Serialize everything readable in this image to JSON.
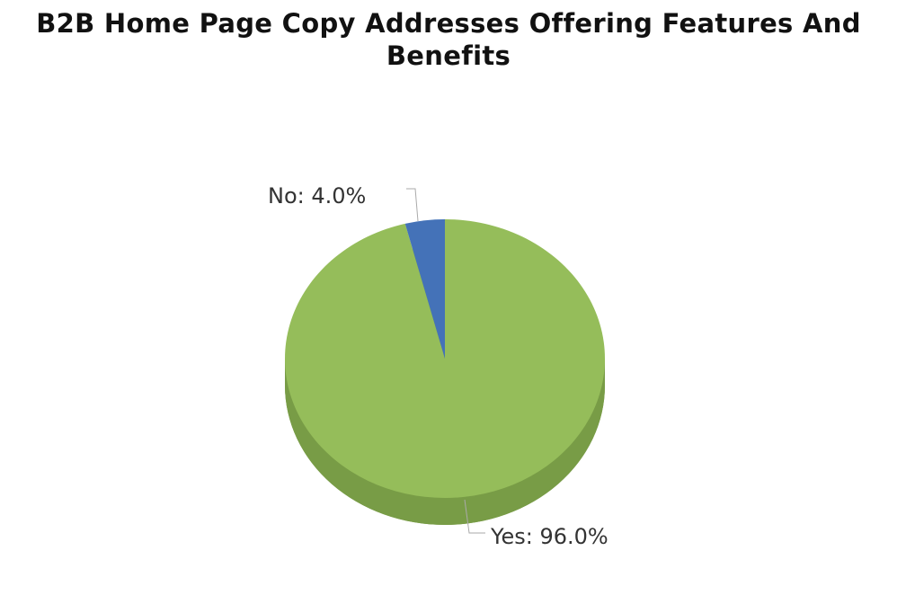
{
  "chart_data": {
    "type": "pie",
    "title": "B2B Home Page Copy Addresses Offering Features And Benefits",
    "slices": [
      {
        "label": "Yes",
        "value": 96.0,
        "display": "Yes: 96.0%",
        "color": "#95bd5a",
        "side_color": "#789c46"
      },
      {
        "label": "No",
        "value": 4.0,
        "display": "No: 4.0%",
        "color": "#4472b8",
        "side_color": "#355c95"
      }
    ],
    "style": "3d",
    "legend": "none"
  }
}
